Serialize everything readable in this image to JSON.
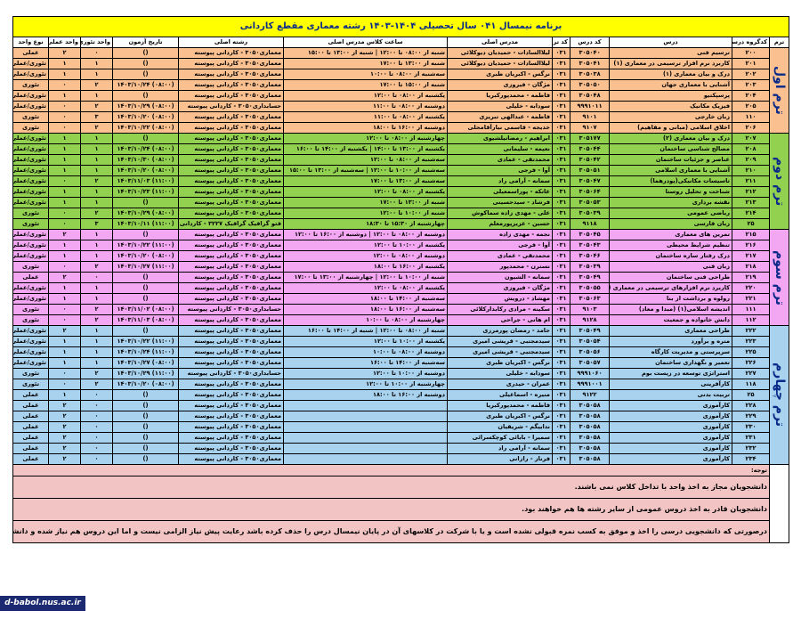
{
  "title": "برنامه نیمسال ۰۴۱ سال تحصیلی ۱۴۰۴-۱۴۰۳ رشته معماری مقطع کاردانی",
  "columns": [
    "ترم",
    "کدگروه درسی",
    "درس",
    "کد درس",
    "کد ترم",
    "مدرس اصلی",
    "ساعت کلاس مدرس اصلی",
    "رشته اصلی",
    "تاریخ آزمون",
    "واحد تئوری",
    "واحد عملی",
    "نوع واحد"
  ],
  "terms": [
    "ترم اول",
    "ترم دوم",
    "ترم سوم",
    "ترم چهارم"
  ],
  "rows": [
    {
      "t": 1,
      "g": "۲۰۰",
      "c": "ترسیم فنی",
      "cc": "۳۰۵۰۴۰",
      "k": "۰۳۱",
      "p": "لیلاالسادات - حمیدیان دیوکلائی",
      "h": "شنبه از ۰۸:۰۰ تا ۱۲:۰۰ | شنبه از ۱۳:۰۰ تا ۱۵:۰۰",
      "f": "معماری۳۰۵۰ - کاردانی پیوسته",
      "d": "()",
      "th": "۰",
      "pr": "۲",
      "ty": "عملی"
    },
    {
      "t": 1,
      "g": "۲۰۱",
      "c": "کاربرد نرم افزار ترسیمی در معماری (۱)",
      "cc": "۳۰۵۰۴۱",
      "k": "۰۳۱",
      "p": "لیلاالسادات - حمیدیان دیوکلائی",
      "h": "شنبه از ۱۳:۰۰ تا ۱۷:۰۰",
      "f": "معماری۳۰۵۰ - کاردانی پیوسته",
      "d": "()",
      "th": "۱",
      "pr": "۱",
      "ty": "تئوری/عملی"
    },
    {
      "t": 1,
      "g": "۲۰۲",
      "c": "درک و بیان معماری (۱)",
      "cc": "۳۰۵۰۳۸",
      "k": "۰۳۱",
      "p": "نرگس - اکبریان طبری",
      "h": "سه‌شنبه از ۰۸:۰۰ تا ۱۰:۰۰",
      "f": "معماری۳۰۵۰ - کاردانی پیوسته",
      "d": "()",
      "th": "۱",
      "pr": "۱",
      "ty": "تئوری/عملی"
    },
    {
      "t": 1,
      "g": "۲۰۳",
      "c": "آشنایی با معماری جهان",
      "cc": "۳۰۵۰۵۰",
      "k": "۰۳۱",
      "p": "مژگان - فیروزی",
      "h": "شنبه از ۱۵:۰۰ تا ۱۷:۰۰",
      "f": "معماری۳۰۵۰ - کاردانی پیوسته",
      "d": "(۰۸:۰۰) ۱۴۰۳/۱۰/۲۴",
      "th": "۲",
      "pr": "۰",
      "ty": "تئوری"
    },
    {
      "t": 1,
      "g": "۲۰۴",
      "c": "پرسپکتیو",
      "cc": "۳۰۵۰۴۸",
      "k": "۰۳۱",
      "p": "فاطمه - محمدپورکبریا",
      "h": "یکشنبه از ۰۸:۰۰ تا ۱۲:۰۰",
      "f": "معماری۳۰۵۰ - کاردانی پیوسته",
      "d": "()",
      "th": "۱",
      "pr": "۱",
      "ty": "تئوری/عملی"
    },
    {
      "t": 1,
      "g": "۲۰۵",
      "c": "فیزیک مکانیک",
      "cc": "۹۹۹۱۰۱۱",
      "k": "۰۳۱",
      "p": "سودابه - خلیلی",
      "h": "دوشنبه از ۰۸:۰۰ تا ۱۱:۰۰",
      "f": "حسابداری۳۰۵۰ - کاردانی پیوسته",
      "d": "(۰۸:۰۰) ۱۴۰۳/۱۰/۲۹",
      "th": "۲",
      "pr": "۰",
      "ty": "تئوری/عملی"
    },
    {
      "t": 1,
      "g": "۱۱۰",
      "c": "زبان خارجی",
      "cc": "۹۱۰۱",
      "k": "۰۳۱",
      "p": "فاطمه - عبدالهی تبریزی",
      "h": "یکشنبه از ۰۸:۰۰ تا ۱۱:۰۰",
      "f": "معماری۳۰۵۰ - کاردانی پیوسته",
      "d": "(۰۸:۰۰) ۱۴۰۳/۱۰/۲۰",
      "th": "۳",
      "pr": "۰",
      "ty": "تئوری"
    },
    {
      "t": 1,
      "g": "۲۰۶",
      "c": "اخلاق اسلامی (مبانی و مفاهیم)",
      "cc": "۹۱۰۷",
      "k": "۰۳۱",
      "p": "خدیجه - قاسمی نیارآقامحلی",
      "h": "دوشنبه از ۱۶:۰۰ تا ۱۸:۰۰",
      "f": "معماری۳۰۵۰ - کاردانی پیوسته",
      "d": "(۰۸:۰۰) ۱۴۰۳/۱۰/۲۲",
      "th": "۲",
      "pr": "۰",
      "ty": "تئوری"
    },
    {
      "t": 2,
      "g": "۲۰۷",
      "c": "درک و بیان معماری (۲)",
      "cc": "۳۰۵۱۷۷",
      "k": "۰۳۱",
      "p": "ابراهیم - رمضانیلشیوی",
      "h": "چهارشنبه از ۰۸:۰۰ تا ۱۲:۰۰",
      "f": "معماری۳۰۵۰ - کاردانی پیوسته",
      "d": "()",
      "th": "۱",
      "pr": "۱",
      "ty": "تئوری/عملی"
    },
    {
      "t": 2,
      "g": "۲۰۸",
      "c": "مصالح شناسی ساختمان",
      "cc": "۳۰۵۰۴۴",
      "k": "۰۳۱",
      "p": "نعیمه - سلیمانی",
      "h": "یکشنبه از ۱۳:۰۰ تا ۱۴:۰۰ | یکشنبه از ۱۴:۰۰ تا ۱۶:۰۰",
      "f": "معماری۳۰۵۰ - کاردانی پیوسته",
      "d": "(۰۸:۰۰) ۱۴۰۳/۱۰/۲۴",
      "th": "۱",
      "pr": "۱",
      "ty": "تئوری/عملی"
    },
    {
      "t": 2,
      "g": "۲۰۹",
      "c": "عناصر و جزئیات ساختمان",
      "cc": "۳۰۵۰۴۲",
      "k": "۰۳۱",
      "p": "محمدتقی - عمادی",
      "h": "سه‌شنبه از ۰۸:۰۰ تا ۱۲:۰۰",
      "f": "معماری۳۰۵۰ - کاردانی پیوسته",
      "d": "(۰۸:۰۰) ۱۴۰۳/۱۰/۳۰",
      "th": "۱",
      "pr": "۱",
      "ty": "تئوری/عملی"
    },
    {
      "t": 2,
      "g": "۲۱۰",
      "c": "آشنایی با معماری اسلامی",
      "cc": "۳۰۵۰۵۱",
      "k": "۰۳۱",
      "p": "آوا - فرجی",
      "h": "سه‌شنبه از ۱۰:۰۰ تا ۱۲:۰۰ | سه‌شنبه از ۱۳:۰۰ تا ۱۵:۰۰",
      "f": "معماری۳۰۵۰ - کاردانی پیوسته",
      "d": "(۰۸:۰۰) ۱۴۰۳/۱۰/۲۰",
      "th": "۱",
      "pr": "۱",
      "ty": "تئوری/عملی"
    },
    {
      "t": 2,
      "g": "۲۱۱",
      "c": "تاسیسات مکانیکی(پودرهما)",
      "cc": "۳۰۵۰۴۷",
      "k": "۰۳۱",
      "p": "سمانه - آرامی راد",
      "h": "سه‌شنبه از ۱۳:۰۰ تا ۱۷:۰۰",
      "f": "معماری۳۰۵۰ - کاردانی پیوسته",
      "d": "(۱۱:۰۰) ۱۴۰۳/۱۱/۰۳",
      "th": "۲",
      "pr": "۰",
      "ty": "تئوری/عملی"
    },
    {
      "t": 2,
      "g": "۲۱۲",
      "c": "شناخت و تحلیل روستا",
      "cc": "۳۰۵۰۶۴",
      "k": "۰۳۱",
      "p": "عاتکه - پوراسمعیلی",
      "h": "یکشنبه از ۰۸:۰۰ تا ۱۲:۰۰",
      "f": "معماری۳۰۵۰ - کاردانی پیوسته",
      "d": "(۱۱:۰۰) ۱۴۰۳/۱۰/۲۳",
      "th": "۱",
      "pr": "۱",
      "ty": "تئوری/عملی"
    },
    {
      "t": 2,
      "g": "۲۱۳",
      "c": "نقشه برداری",
      "cc": "۳۰۵۰۵۳",
      "k": "۰۳۱",
      "p": "فرشاد - سیدحسینی",
      "h": "شنبه از ۱۳:۰۰ تا ۱۷:۰۰",
      "f": "معماری۳۰۵۰ - کاردانی پیوسته",
      "d": "()",
      "th": "۱",
      "pr": "۱",
      "ty": "تئوری/عملی"
    },
    {
      "t": 2,
      "g": "۲۱۴",
      "c": "ریاضی عمومی",
      "cc": "۳۰۵۰۳۹",
      "k": "۰۳۱",
      "p": "علی - مهدی زاده سماکوش",
      "h": "شنبه از ۱۰:۰۰ تا ۱۲:۰۰",
      "f": "معماری۳۰۵۰ - کاردانی پیوسته",
      "d": "(۰۸:۰۰) ۱۴۰۳/۱۰/۲۹",
      "th": "۲",
      "pr": "۰",
      "ty": "تئوری"
    },
    {
      "t": 2,
      "g": "۲۵",
      "c": "زبان فارسی",
      "cc": "۹۱۱۸",
      "k": "۰۳۱",
      "p": "حسین - عزیزپورمعلم",
      "h": "چهارشنبه از ۱۵:۳۰ تا ۱۸:۳۰",
      "f": "فتو گرافیک گرافیک ۳۲۲۷ - کاردانی پیوسته",
      "d": "(۱۱:۰۰) ۱۴۰۳/۱۰/۱۱",
      "th": "۳",
      "pr": "۰",
      "ty": "تئوری"
    },
    {
      "t": 3,
      "g": "۲۱۵",
      "c": "تمرین های معماری",
      "cc": "۳۰۵۰۴۵",
      "k": "۰۳۱",
      "p": "نجمه - مهدی زاده",
      "h": "دوشنبه از ۰۸:۰۰ تا ۱۲:۰۰ | دوشنبه از ۱۶:۰۰ تا ۱۲:۰۰",
      "f": "معماری۳۰۵۰ - کاردانی پیوسته",
      "d": "()",
      "th": "۱",
      "pr": "۲",
      "ty": "تئوری/عملی"
    },
    {
      "t": 3,
      "g": "۲۱۶",
      "c": "تنظیم شرایط محیطی",
      "cc": "۳۰۵۰۴۳",
      "k": "۰۳۱",
      "p": "آوا - فرجی",
      "h": "یکشنبه از ۱۰:۰۰ تا ۱۲:۰۰",
      "f": "معماری۳۰۵۰ - کاردانی پیوسته",
      "d": "(۱۱:۰۰) ۱۴۰۳/۱۰/۲۲",
      "th": "۱",
      "pr": "۱",
      "ty": "تئوری/عملی"
    },
    {
      "t": 3,
      "g": "۲۱۷",
      "c": "درک رفتار سازه ساختمان",
      "cc": "۳۰۵۰۴۶",
      "k": "۰۳۱",
      "p": "محمدتقی - عمادی",
      "h": "دوشنبه از ۰۸:۰۰ تا ۱۲:۰۰",
      "f": "معماری۳۰۵۰ - کاردانی پیوسته",
      "d": "(۰۸:۰۰) ۱۴۰۳/۱۰/۲۰",
      "th": "۱",
      "pr": "۱",
      "ty": "تئوری/عملی"
    },
    {
      "t": 3,
      "g": "۲۱۸",
      "c": "زبان فنی",
      "cc": "۳۰۵۰۳۹",
      "k": "۰۳۱",
      "p": "نسترن - محمدپور",
      "h": "یکشنبه از ۱۶:۰۰ تا ۱۸:۰۰",
      "f": "معماری۳۰۵۰ - کاردانی پیوسته",
      "d": "(۱۱:۰۰) ۱۴۰۳/۱۰/۲۷",
      "th": "۲",
      "pr": "۰",
      "ty": "تئوری"
    },
    {
      "t": 3,
      "g": "۲۱۹",
      "c": "طراحی فنی ساختمان",
      "cc": "۳۰۵۰۴۹",
      "k": "۰۳۱",
      "p": "سمانه - الشیون",
      "h": "شنبه از ۱۰:۰۰ تا ۱۲:۰۰ | چهارشنبه از ۱۳:۰۰ تا ۱۷:۰۰",
      "f": "معماری۳۰۵۰ - کاردانی پیوسته",
      "d": "()",
      "th": "۰",
      "pr": "۲",
      "ty": "عملی"
    },
    {
      "t": 3,
      "g": "۲۲۰",
      "c": "کاربرد نرم افزارهای ترسیمی در معماری (۲)",
      "cc": "۳۰۵۰۵۵",
      "k": "۰۳۱",
      "p": "مژگان - فیروزی",
      "h": "یکشنبه از ۰۸:۰۰ تا ۱۲:۰۰",
      "f": "معماری۳۰۵۰ - کاردانی پیوسته",
      "d": "()",
      "th": "۱",
      "pr": "۱",
      "ty": "تئوری/عملی"
    },
    {
      "t": 3,
      "g": "۲۲۱",
      "c": "رولوه و برداشت از بنا",
      "cc": "۳۰۵۰۶۳",
      "k": "۰۳۱",
      "p": "مهشاد - درویش",
      "h": "سه‌شنبه از ۱۴:۰۰ تا ۱۸:۰۰",
      "f": "معماری۳۰۵۰ - کاردانی پیوسته",
      "d": "()",
      "th": "۱",
      "pr": "۱",
      "ty": "تئوری/عملی"
    },
    {
      "t": 3,
      "g": "۱۱۱",
      "c": "اندیشه اسلامی(۱) (مبدا و معاد)",
      "cc": "۹۱۰۳",
      "k": "۰۳۱",
      "p": "سکینه - مرادی رکابدارکلائی",
      "h": "سه‌شنبه از ۱۶:۰۰ تا ۱۸:۰۰",
      "f": "حسابداری۳۰۵۰ - کاردانی پیوسته",
      "d": "(۰۸:۰۰) ۱۴۰۳/۱۱/۰۲",
      "th": "۲",
      "pr": "۰",
      "ty": "تئوری"
    },
    {
      "t": 3,
      "g": "۱۱۲",
      "c": "دانش خانواده و جمعیت",
      "cc": "۹۱۲۸",
      "k": "۰۳۱",
      "p": "ام هانی - جراحی",
      "h": "چهارشنبه از ۰۸:۰۰ تا ۱۰:۰۰",
      "f": "معماری۳۰۵۰ - کاردانی پیوسته",
      "d": "(۰۸:۰۰) ۱۴۰۳/۱۱/۰۳",
      "th": "۲",
      "pr": "۰",
      "ty": "تئوری"
    },
    {
      "t": 4,
      "g": "۲۲۲",
      "c": "طراحی معماری",
      "cc": "۳۰۵۰۴۹",
      "k": "۰۳۱",
      "p": "حامد - رمضان پورمرزی",
      "h": "شنبه از ۰۸:۰۰ تا ۱۲:۰۰ | شنبه از ۱۴:۰۰ تا ۱۶:۰۰",
      "f": "معماری۳۰۵۰ - کاردانی پیوسته",
      "d": "()",
      "th": "۱",
      "pr": "۲",
      "ty": "تئوری/عملی"
    },
    {
      "t": 4,
      "g": "۲۲۳",
      "c": "متره و برآورد",
      "cc": "۳۰۵۰۵۴",
      "k": "۰۳۱",
      "p": "سیدمجتبی - قریشی امیری",
      "h": "یکشنبه از ۱۰:۰۰ تا ۱۲:۰۰",
      "f": "معماری۳۰۵۰ - کاردانی پیوسته",
      "d": "(۱۱:۰۰) ۱۴۰۳/۱۰/۲۲",
      "th": "۱",
      "pr": "۱",
      "ty": "تئوری/عملی"
    },
    {
      "t": 4,
      "g": "۲۲۵",
      "c": "سرپرستی و مدیریت کارگاه",
      "cc": "۳۰۵۰۵۶",
      "k": "۰۳۱",
      "p": "سیدمجتبی - قریشی امیری",
      "h": "دوشنبه از ۰۸:۰۰ تا ۱۰:۰۰",
      "f": "معماری۳۰۵۰ - کاردانی پیوسته",
      "d": "(۱۱:۰۰) ۱۴۰۳/۱۰/۲۴",
      "th": "۱",
      "pr": "۱",
      "ty": "تئوری/عملی"
    },
    {
      "t": 4,
      "g": "۲۲۶",
      "c": "تعمیر و نگهداری ساختمان",
      "cc": "۳۰۵۰۵۷",
      "k": "۰۳۱",
      "p": "نرگس - اکبریان طبری",
      "h": "سه‌شنبه از ۱۴:۰۰ تا ۱۶:۰۰",
      "f": "معماری۳۰۵۰ - کاردانی پیوسته",
      "d": "(۰۸:۰۰) ۱۴۰۳/۱۰/۲۷",
      "th": "۱",
      "pr": "۱",
      "ty": "تئوری/عملی"
    },
    {
      "t": 4,
      "g": "۲۲۷",
      "c": "استراتژی توسعه در زیست بوم",
      "cc": "۹۹۹۱۰۶۰",
      "k": "۰۳۱",
      "p": "سودابه - خلیلی",
      "h": "دوشنبه از ۱۰:۰۰ تا ۱۲:۰۰",
      "f": "حسابداری۳۰۵۰ - کاردانی پیوسته",
      "d": "(۱۱:۰۰) ۱۴۰۳/۱۰/۲۹",
      "th": "۲",
      "pr": "۰",
      "ty": "تئوری"
    },
    {
      "t": 4,
      "g": "۱۱۸",
      "c": "کارآفرینی",
      "cc": "۹۹۹۱۰۰۱",
      "k": "۰۳۱",
      "p": "عمران - حیدری",
      "h": "چهارشنبه از ۱۰:۰۰ تا ۱۲:۰۰",
      "f": "معماری۳۰۵۰ - کاردانی پیوسته",
      "d": "(۰۸:۰۰) ۱۴۰۳/۱۰/۲۰",
      "th": "۲",
      "pr": "۰",
      "ty": "تئوری"
    },
    {
      "t": 4,
      "g": "۲۵",
      "c": "تربیت بدنی",
      "cc": "۹۱۲۲",
      "k": "۰۳۱",
      "p": "منیره - اسماعیلی",
      "h": "دوشنبه از ۱۶:۰۰ تا ۱۸:۰۰",
      "f": "معماری۳۰۵۰ - کاردانی پیوسته",
      "d": "()",
      "th": "۰",
      "pr": "۱",
      "ty": "عملی"
    },
    {
      "t": 4,
      "g": "۲۲۸",
      "c": "کارآموزی",
      "cc": "۳۰۵۰۵۸",
      "k": "۰۳۱",
      "p": "فاطمه - محمدپورکبریا",
      "h": "",
      "f": "معماری۳۰۵۰ - کاردانی پیوسته",
      "d": "()",
      "th": "۰",
      "pr": "۲",
      "ty": "عملی"
    },
    {
      "t": 4,
      "g": "۲۲۹",
      "c": "کارآموزی",
      "cc": "۳۰۵۰۵۸",
      "k": "۰۳۱",
      "p": "نرگس - اکبریان طبری",
      "h": "",
      "f": "معماری۳۰۵۰ - کاردانی پیوسته",
      "d": "()",
      "th": "۰",
      "pr": "۲",
      "ty": "عملی"
    },
    {
      "t": 4,
      "g": "۲۳۰",
      "c": "کارآموزی",
      "cc": "۳۰۵۰۵۸",
      "k": "۰۳۱",
      "p": "نداییگم - شریفیان",
      "h": "",
      "f": "معماری۳۰۵۰ - کاردانی پیوسته",
      "d": "()",
      "th": "۰",
      "pr": "۲",
      "ty": "عملی"
    },
    {
      "t": 4,
      "g": "۲۳۱",
      "c": "کارآموزی",
      "cc": "۳۰۵۰۵۸",
      "k": "۰۳۱",
      "p": "سمیرا - بابائی کوچکسرائی",
      "h": "",
      "f": "معماری۳۰۵۰ - کاردانی پیوسته",
      "d": "()",
      "th": "۰",
      "pr": "۲",
      "ty": "عملی"
    },
    {
      "t": 4,
      "g": "۲۳۲",
      "c": "کارآموزی",
      "cc": "۳۰۵۰۵۸",
      "k": "۰۳۱",
      "p": "سمانه - آرامی راد",
      "h": "",
      "f": "معماری۳۰۵۰ - کاردانی پیوسته",
      "d": "()",
      "th": "۰",
      "pr": "۲",
      "ty": "عملی"
    },
    {
      "t": 4,
      "g": "۲۳۴",
      "c": "کارآموزی",
      "cc": "۳۰۵۰۵۸",
      "k": "۰۳۱",
      "p": "فرناز - رازانی",
      "h": "",
      "f": "معماری۳۰۵۰ - کاردانی پیوسته",
      "d": "()",
      "th": "۰",
      "pr": "۲",
      "ty": "عملی"
    }
  ],
  "notes": {
    "label": "توجه:",
    "items": [
      "دانشجویان مجاز به اخذ واحد با تداخل کلاس نمی باشند.",
      "دانشجویان  قادر به اخذ دروس عمومی از سایر رشته ها هم خواهند بود.",
      "درصورتی که دانشجویی درسی را اخذ و موفق به کسب نمره قبولی نشده است و یا با شرکت در کلاسهای آن در پایان نیمسال درس را حذف کرده باشد رعایت پیش نیاز الزامی نیست و اما این دروس هم نیاز شده و دانشجو ملزم به اخذ هر دو درس در ترم مهر ۱۴۰۳ می باشد."
    ]
  },
  "stamp": "d-babol.nus.ac.ir"
}
